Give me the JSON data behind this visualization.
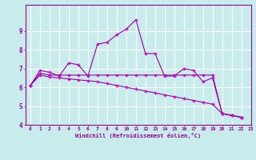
{
  "bg_color": "#c8ecec",
  "grid_color": "#ffffff",
  "line_color": "#990099",
  "marker_color": "#cc00cc",
  "xlabel": "Windchill (Refroidissement éolien,°C)",
  "xlim": [
    -0.5,
    23
  ],
  "ylim": [
    4,
    10
  ],
  "yticks": [
    4,
    5,
    6,
    7,
    8,
    9
  ],
  "xticks": [
    0,
    1,
    2,
    3,
    4,
    5,
    6,
    7,
    8,
    9,
    10,
    11,
    12,
    13,
    14,
    15,
    16,
    17,
    18,
    19,
    20,
    21,
    22,
    23
  ],
  "series1": [
    6.1,
    6.9,
    6.8,
    6.6,
    7.3,
    7.2,
    6.6,
    8.3,
    8.4,
    8.8,
    9.1,
    9.6,
    7.8,
    7.8,
    6.6,
    6.6,
    7.0,
    6.9,
    6.3,
    6.5,
    4.6,
    4.5,
    4.4
  ],
  "series2": [
    6.1,
    6.75,
    6.65,
    6.65,
    6.65,
    6.65,
    6.65,
    6.65,
    6.65,
    6.65,
    6.65,
    6.65,
    6.65,
    6.65,
    6.65,
    6.65,
    6.65,
    6.65,
    6.65,
    6.65,
    4.6,
    4.5,
    4.4
  ],
  "series3": [
    6.1,
    6.65,
    6.55,
    6.5,
    6.45,
    6.4,
    6.35,
    6.3,
    6.2,
    6.1,
    6.0,
    5.9,
    5.8,
    5.7,
    5.6,
    5.5,
    5.4,
    5.3,
    5.2,
    5.1,
    4.6,
    4.5,
    4.4
  ]
}
